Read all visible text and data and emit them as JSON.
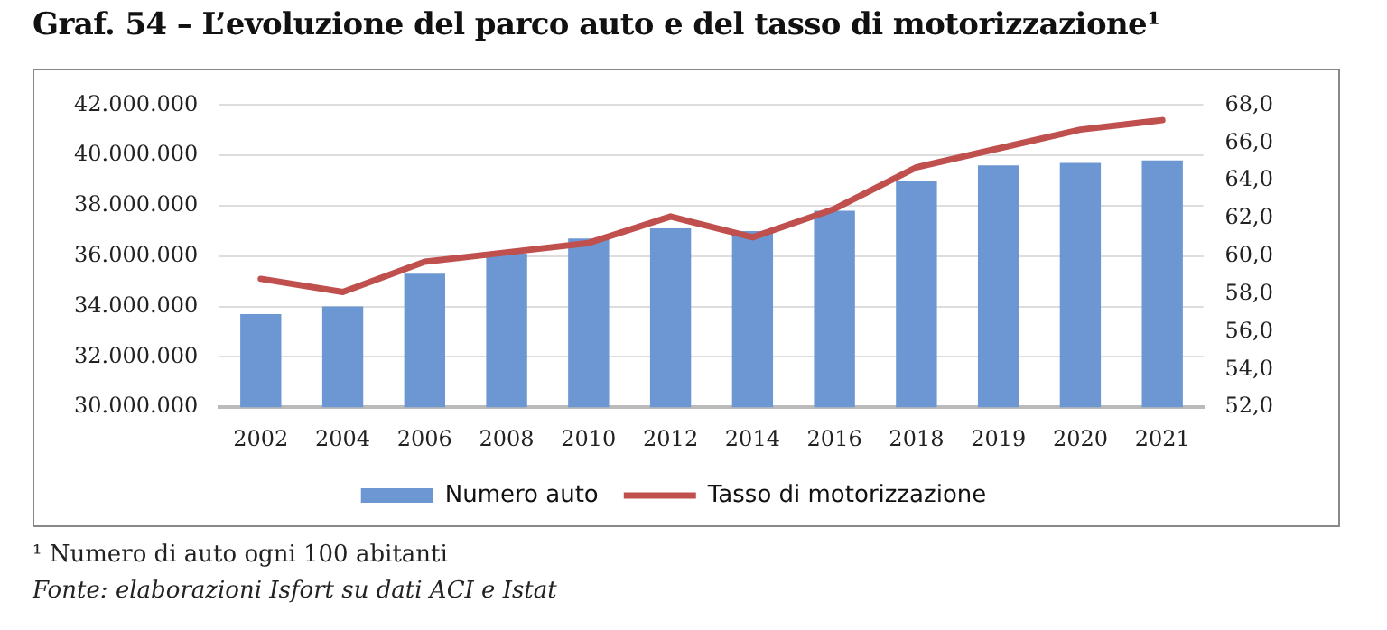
{
  "chart_data": {
    "type": "bar",
    "title": "Graf. 54 – L’evoluzione del parco auto e del tasso di motorizzazione¹",
    "categories": [
      "2002",
      "2004",
      "2006",
      "2008",
      "2010",
      "2012",
      "2014",
      "2016",
      "2018",
      "2019",
      "2020",
      "2021"
    ],
    "series": [
      {
        "name": "Numero auto",
        "color": "#6c97d2",
        "values": [
          33700000,
          34000000,
          35300000,
          36100000,
          36700000,
          37100000,
          37000000,
          37800000,
          39000000,
          39600000,
          39700000,
          39800000
        ]
      },
      {
        "name": "Tasso di motorizzazione",
        "type": "line",
        "axis": "y2",
        "color": "#c0504d",
        "values": [
          58.8,
          58.1,
          59.7,
          60.2,
          60.7,
          62.1,
          61.0,
          62.5,
          64.7,
          65.7,
          66.7,
          67.2
        ]
      }
    ],
    "ylim": [
      30000000,
      42000000
    ],
    "yticks": [
      {
        "value": 30000000,
        "label": "30.000.000"
      },
      {
        "value": 32000000,
        "label": "32.000.000"
      },
      {
        "value": 34000000,
        "label": "34.000.000"
      },
      {
        "value": 36000000,
        "label": "36.000.000"
      },
      {
        "value": 38000000,
        "label": "38.000.000"
      },
      {
        "value": 40000000,
        "label": "40.000.000"
      },
      {
        "value": 42000000,
        "label": "42.000.000"
      }
    ],
    "y2lim": [
      52,
      68
    ],
    "y2ticks": [
      {
        "value": 52,
        "label": "52,0"
      },
      {
        "value": 54,
        "label": "54,0"
      },
      {
        "value": 56,
        "label": "56,0"
      },
      {
        "value": 58,
        "label": "58,0"
      },
      {
        "value": 60,
        "label": "60,0"
      },
      {
        "value": 62,
        "label": "62,0"
      },
      {
        "value": 64,
        "label": "64,0"
      },
      {
        "value": 66,
        "label": "66,0"
      },
      {
        "value": 68,
        "label": "68,0"
      }
    ],
    "grid": "y",
    "legend": "bottom",
    "marker": "none",
    "annotations": [
      "¹ Numero di auto ogni 100 abitanti",
      "Fonte: elaborazioni Isfort su dati ACI e Istat"
    ]
  }
}
